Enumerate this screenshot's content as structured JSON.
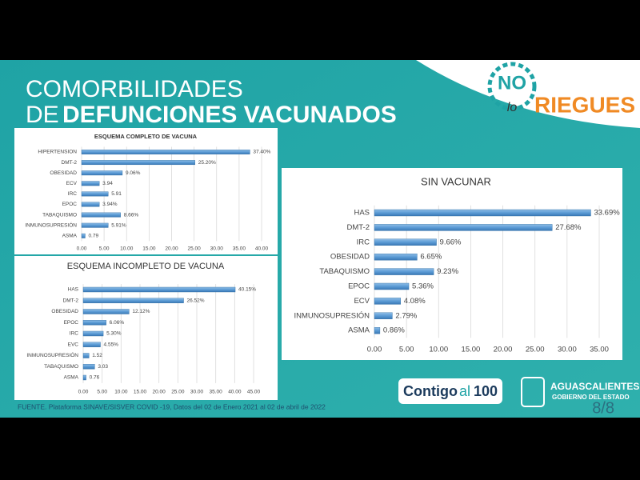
{
  "slide": {
    "title_line1": "COMORBILIDADES",
    "title_de": "DE",
    "title_bold": "DEFUNCIONES VACUNADOS",
    "logo_no": "NO",
    "logo_lo": "lo",
    "logo_riegues": "RIEGUES",
    "contigo": "Contigo",
    "contigo_al": "al",
    "contigo_100": "100",
    "gov_name": "AGUASCALIENTES",
    "gov_sub": "GOBIERNO DEL ESTADO",
    "source": "FUENTE. Plataforma SINAVE/SISVER COVID -19, Datos del 02 de Enero 2021 al 02 de abril de 2022",
    "page": "8/8"
  },
  "chart_data": [
    {
      "type": "bar",
      "orientation": "horizontal",
      "title": "ESQUEMA COMPLETO DE VACUNA",
      "color": "#5b9bd5",
      "grid": true,
      "categories": [
        "HIPERTENSION",
        "DMT-2",
        "OBESIDAD",
        "ECV",
        "IRC",
        "EPOC",
        "TABAQUISMO",
        "INMUNOSUPRESIÓN",
        "ASMA"
      ],
      "values": [
        37.4,
        25.2,
        9.06,
        3.94,
        5.91,
        3.94,
        8.66,
        5.91,
        0.79
      ],
      "value_labels": [
        "37.40%",
        "25.20%",
        "9.06%",
        "3.94",
        "5.91",
        "3.94%",
        "8.66%",
        "5.91%",
        "0.79"
      ],
      "xlim": [
        0,
        40
      ],
      "xticks": [
        {
          "value": 0,
          "label": "0.00"
        },
        {
          "value": 5,
          "label": "5.00"
        },
        {
          "value": 10,
          "label": "10.00"
        },
        {
          "value": 15,
          "label": "15.00"
        },
        {
          "value": 20,
          "label": "20.00"
        },
        {
          "value": 25,
          "label": "25.00"
        },
        {
          "value": 30,
          "label": "30.00"
        },
        {
          "value": 35,
          "label": "35.00"
        },
        {
          "value": 40,
          "label": "40.00"
        }
      ]
    },
    {
      "type": "bar",
      "orientation": "horizontal",
      "title": "ESQUEMA INCOMPLETO DE VACUNA",
      "color": "#5b9bd5",
      "grid": true,
      "categories": [
        "HAS",
        "DMT-2",
        "OBESIDAD",
        "EPOC",
        "IRC",
        "EVC",
        "INMUNOSUPRESIÓN",
        "TABAQUISMO",
        "ASMA"
      ],
      "values": [
        40.15,
        26.52,
        12.12,
        6.06,
        5.3,
        4.55,
        1.52,
        3.03,
        0.76
      ],
      "value_labels": [
        "40.15%",
        "26.52%",
        "12.12%",
        "6.06%",
        "5.30%",
        "4.55%",
        "1.52",
        "3.03",
        "0.76"
      ],
      "xlim": [
        0,
        45
      ],
      "xticks": [
        {
          "value": 0,
          "label": "0.00"
        },
        {
          "value": 5,
          "label": "5.00"
        },
        {
          "value": 10,
          "label": "10.00"
        },
        {
          "value": 15,
          "label": "15.00"
        },
        {
          "value": 20,
          "label": "20.00"
        },
        {
          "value": 25,
          "label": "25.00"
        },
        {
          "value": 30,
          "label": "30.00"
        },
        {
          "value": 35,
          "label": "35.00"
        },
        {
          "value": 40,
          "label": "40.00"
        },
        {
          "value": 45,
          "label": "45.00"
        }
      ]
    },
    {
      "type": "bar",
      "orientation": "horizontal",
      "title": "SIN VACUNAR",
      "color": "#5b9bd5",
      "grid": true,
      "categories": [
        "HAS",
        "DMT-2",
        "IRC",
        "OBESIDAD",
        "TABAQUISMO",
        "EPOC",
        "ECV",
        "INMUNOSUPRESIÓN",
        "ASMA"
      ],
      "values": [
        33.69,
        27.68,
        9.66,
        6.65,
        9.23,
        5.36,
        4.08,
        2.79,
        0.86
      ],
      "value_labels": [
        "33.69%",
        "27.68%",
        "9.66%",
        "6.65%",
        "9.23%",
        "5.36%",
        "4.08%",
        "2.79%",
        "0.86%"
      ],
      "xlim": [
        0,
        35
      ],
      "xticks": [
        {
          "value": 0,
          "label": "0.00"
        },
        {
          "value": 5,
          "label": "5.00"
        },
        {
          "value": 10,
          "label": "10.00"
        },
        {
          "value": 15,
          "label": "15.00"
        },
        {
          "value": 20,
          "label": "20.00"
        },
        {
          "value": 25,
          "label": "25.00"
        },
        {
          "value": 30,
          "label": "30.00"
        },
        {
          "value": 35,
          "label": "35.00"
        }
      ]
    }
  ]
}
